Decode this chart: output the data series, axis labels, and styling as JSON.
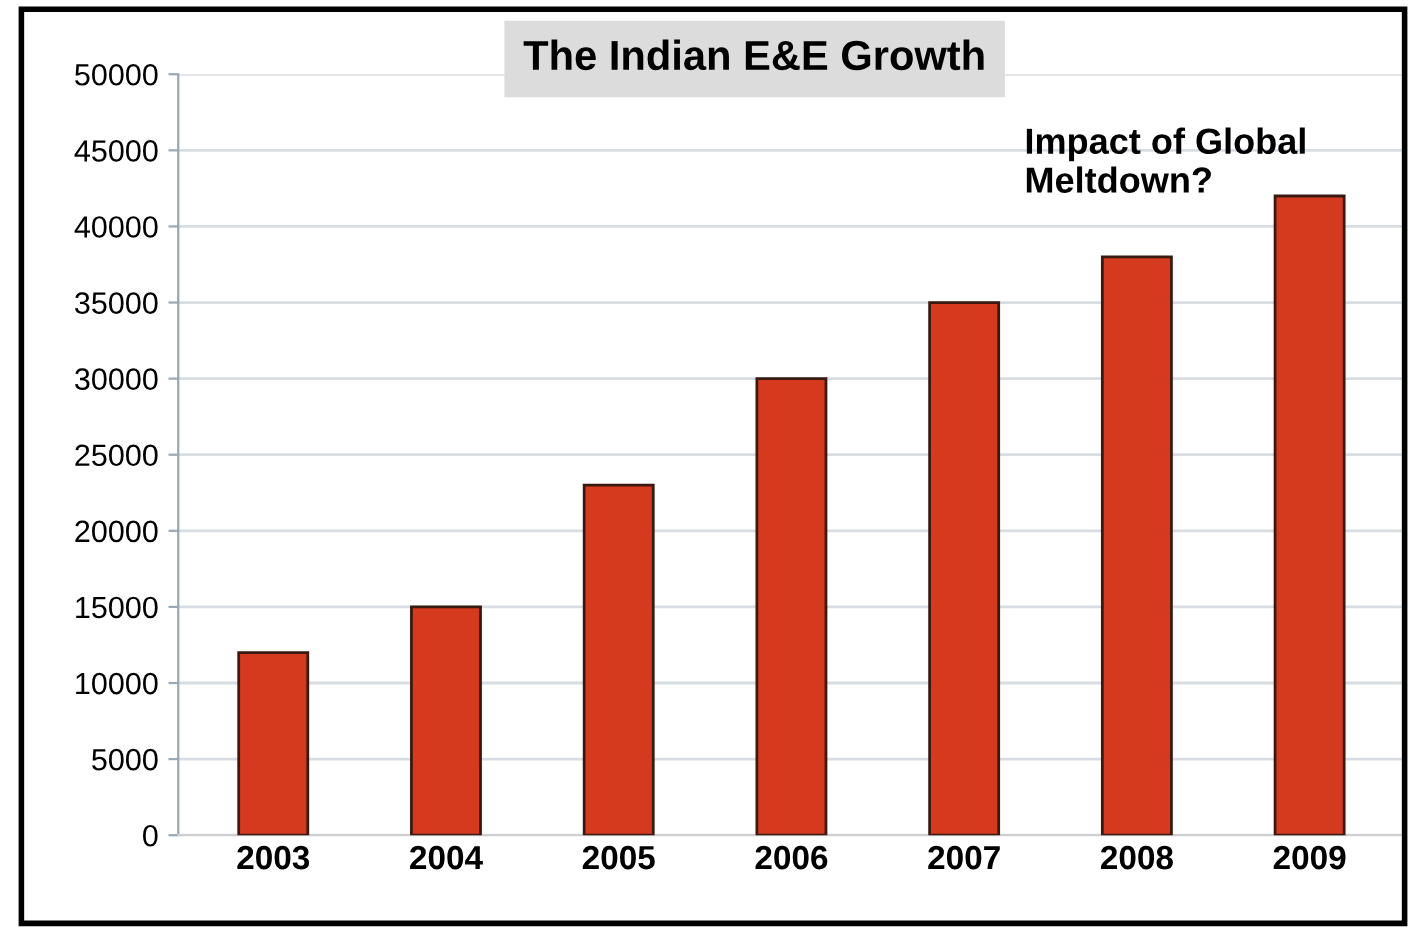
{
  "chart_data": {
    "type": "bar",
    "title": "The Indian E&E Growth",
    "categories": [
      "2003",
      "2004",
      "2005",
      "2006",
      "2007",
      "2008",
      "2009"
    ],
    "values": [
      12000,
      15000,
      23000,
      30000,
      35000,
      38000,
      42000
    ],
    "color": "#d63a1e",
    "ylim": [
      0,
      50000
    ],
    "yticks": [
      0,
      5000,
      10000,
      15000,
      20000,
      25000,
      30000,
      35000,
      40000,
      45000,
      50000
    ],
    "grid": "y",
    "annotations": [
      "Impact of Global\nMeltdown?"
    ]
  }
}
